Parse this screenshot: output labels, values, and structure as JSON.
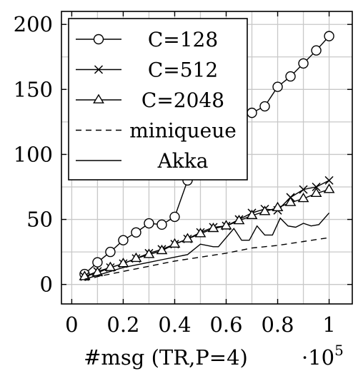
{
  "chart_data": {
    "type": "line",
    "title": "",
    "xlabel": "#msg (TR,P=4)",
    "ylabel": "",
    "x_scale_label": "·10",
    "x_scale_exponent": "5",
    "xlim": [
      -0.04,
      1.09
    ],
    "ylim": [
      -15,
      210
    ],
    "x_ticks": [
      0,
      0.2,
      0.4,
      0.6,
      0.8,
      1
    ],
    "x_tick_labels": [
      "0",
      "0.2",
      "0.4",
      "0.6",
      "0.8",
      "1"
    ],
    "y_ticks": [
      0,
      50,
      100,
      150,
      200
    ],
    "y_tick_labels": [
      "0",
      "50",
      "100",
      "150",
      "200"
    ],
    "grid": true,
    "legend_position": "top-left",
    "series": [
      {
        "name": "C=128",
        "marker": "circle",
        "dash": "solid",
        "x": [
          0.05,
          0.1,
          0.15,
          0.2,
          0.25,
          0.3,
          0.35,
          0.4,
          0.45,
          0.5,
          0.55,
          0.6,
          0.65,
          0.7,
          0.75,
          0.8,
          0.85,
          0.9,
          0.95,
          1.0
        ],
        "y": [
          8,
          17,
          25,
          34,
          40,
          47,
          46,
          52,
          80,
          100,
          118,
          122,
          128,
          132,
          137,
          152,
          160,
          170,
          180,
          191
        ]
      },
      {
        "name": "C=512",
        "marker": "x",
        "dash": "solid",
        "x": [
          0.05,
          0.1,
          0.15,
          0.2,
          0.25,
          0.3,
          0.35,
          0.4,
          0.45,
          0.5,
          0.55,
          0.6,
          0.65,
          0.7,
          0.75,
          0.8,
          0.85,
          0.9,
          0.95,
          1.0
        ],
        "y": [
          6,
          10,
          13,
          16,
          20,
          24,
          27,
          31,
          35,
          40,
          44,
          45,
          50,
          55,
          58,
          57,
          67,
          73,
          75,
          80
        ]
      },
      {
        "name": "C=2048",
        "marker": "triangle",
        "dash": "solid",
        "x": [
          0.05,
          0.1,
          0.15,
          0.2,
          0.25,
          0.3,
          0.35,
          0.4,
          0.45,
          0.5,
          0.55,
          0.6,
          0.65,
          0.7,
          0.75,
          0.8,
          0.85,
          0.9,
          0.95,
          1.0
        ],
        "y": [
          6,
          9,
          13,
          16,
          20,
          23,
          26,
          31,
          35,
          39,
          43,
          45,
          49,
          53,
          56,
          59,
          63,
          66,
          70,
          73
        ]
      },
      {
        "name": "miniqueue",
        "marker": "none",
        "dash": "dashed",
        "x": [
          0.05,
          0.1,
          0.2,
          0.3,
          0.4,
          0.5,
          0.6,
          0.7,
          0.8,
          0.9,
          1.0
        ],
        "y": [
          3,
          6,
          10,
          14,
          18,
          21,
          24,
          28,
          30,
          33,
          36
        ]
      },
      {
        "name": "Akka",
        "marker": "none",
        "dash": "solid",
        "x": [
          0.05,
          0.1,
          0.15,
          0.2,
          0.25,
          0.3,
          0.35,
          0.4,
          0.45,
          0.5,
          0.55,
          0.57,
          0.6,
          0.63,
          0.66,
          0.69,
          0.72,
          0.75,
          0.78,
          0.81,
          0.84,
          0.87,
          0.9,
          0.93,
          0.96,
          1.0
        ],
        "y": [
          4,
          7,
          10,
          13,
          15,
          17,
          19,
          21,
          23,
          31,
          29,
          29,
          36,
          43,
          34,
          34,
          45,
          38,
          38,
          51,
          45,
          44,
          47,
          45,
          46,
          55
        ]
      }
    ]
  }
}
